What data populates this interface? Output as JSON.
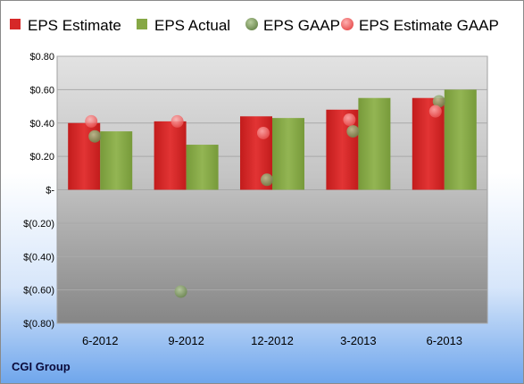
{
  "company_label": "CGI Group",
  "chart_data": {
    "type": "bar",
    "categories": [
      "6-2012",
      "9-2012",
      "12-2012",
      "3-2013",
      "6-2013"
    ],
    "series": [
      {
        "name": "EPS Estimate",
        "kind": "bar",
        "color": "#d62828",
        "values": [
          0.4,
          0.41,
          0.44,
          0.48,
          0.55
        ]
      },
      {
        "name": "EPS Actual",
        "kind": "bar",
        "color": "#86a845",
        "values": [
          0.35,
          0.27,
          0.43,
          0.55,
          0.6
        ]
      },
      {
        "name": "EPS GAAP",
        "kind": "point",
        "color": "#7f9a60",
        "values": [
          0.32,
          -0.61,
          0.06,
          0.35,
          0.53
        ]
      },
      {
        "name": "EPS Estimate GAAP",
        "kind": "point",
        "color": "#ee6c6c",
        "values": [
          0.41,
          0.41,
          0.34,
          0.42,
          0.47
        ]
      }
    ],
    "y_ticks": [
      0.8,
      0.6,
      0.4,
      0.2,
      0,
      -0.2,
      -0.4,
      -0.6,
      -0.8
    ],
    "y_tick_labels": [
      "$0.80",
      "$0.60",
      "$0.40",
      "$0.20",
      "$-",
      "$(0.20)",
      "$(0.40)",
      "$(0.60)",
      "$(0.80)"
    ],
    "ylim": [
      -0.8,
      0.8
    ],
    "grid": true,
    "legend_position": "top"
  }
}
